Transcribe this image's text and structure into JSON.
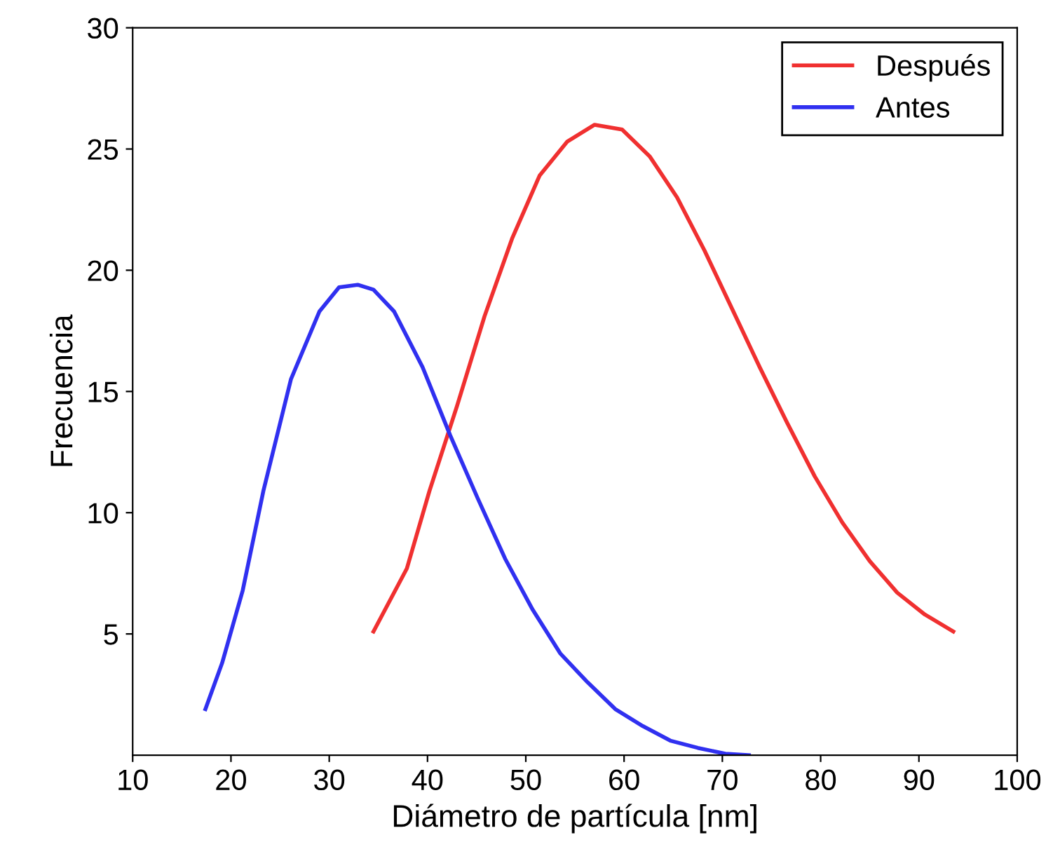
{
  "chart_data": {
    "type": "line",
    "xlabel": "Diámetro de partícula [nm]",
    "ylabel": "Frecuencia",
    "xlim": [
      10,
      100
    ],
    "ylim": [
      0,
      30
    ],
    "xticks": [
      10,
      20,
      30,
      40,
      50,
      60,
      70,
      80,
      90,
      100
    ],
    "yticks": [
      5,
      10,
      15,
      20,
      25,
      30
    ],
    "grid": false,
    "legend": "top right",
    "marker": "none",
    "line_style": "solid",
    "series": [
      {
        "name": "Después",
        "color": "#f03030",
        "x": [
          34.5,
          37.9,
          40.2,
          43.0,
          45.8,
          48.6,
          51.4,
          54.2,
          57.0,
          59.8,
          62.6,
          65.4,
          68.2,
          71.0,
          73.8,
          76.6,
          79.4,
          82.2,
          85.0,
          87.8,
          90.6,
          93.5
        ],
        "values": [
          5.1,
          7.7,
          10.9,
          14.4,
          18.1,
          21.3,
          23.9,
          25.3,
          26.0,
          25.8,
          24.7,
          23.0,
          20.8,
          18.4,
          16.0,
          13.7,
          11.5,
          9.6,
          8.0,
          6.7,
          5.8,
          5.1
        ]
      },
      {
        "name": "Antes",
        "color": "#3030f0",
        "x": [
          17.4,
          19.1,
          21.2,
          23.3,
          26.1,
          29.0,
          31.0,
          32.9,
          34.5,
          36.6,
          39.5,
          42.3,
          45.1,
          47.9,
          50.7,
          53.5,
          56.3,
          59.1,
          61.9,
          64.7,
          67.5,
          70.3,
          72.7
        ],
        "values": [
          1.9,
          3.8,
          6.8,
          10.9,
          15.5,
          18.3,
          19.3,
          19.4,
          19.2,
          18.3,
          16.0,
          13.2,
          10.6,
          8.1,
          6.0,
          4.2,
          3.0,
          1.9,
          1.2,
          0.6,
          0.3,
          0.06,
          0
        ]
      }
    ]
  }
}
